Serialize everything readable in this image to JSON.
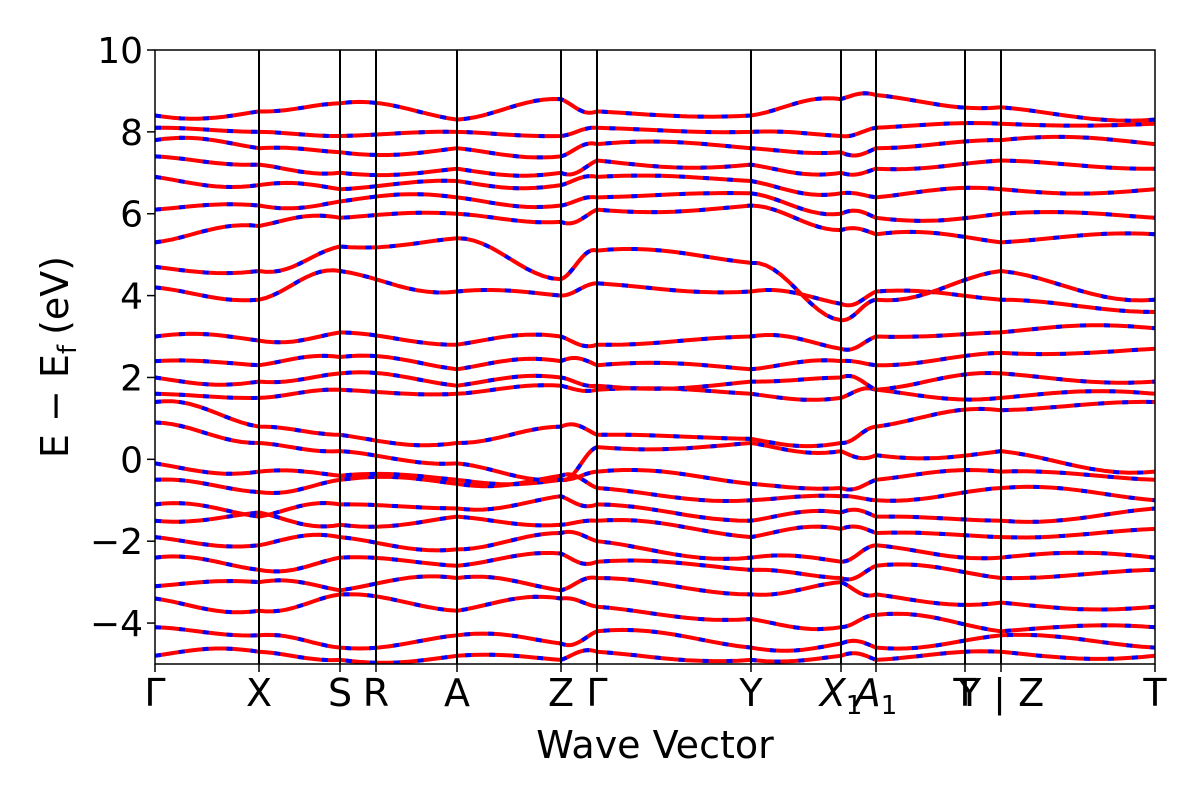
{
  "chart_data": {
    "type": "line",
    "xlabel": "Wave Vector",
    "ylabel_main": "E − E",
    "ylabel_sub": "f",
    "ylabel_unit": "(eV)",
    "ylim": [
      -5,
      10
    ],
    "yticks": [
      {
        "value": -4,
        "label": "−4"
      },
      {
        "value": -2,
        "label": "−2"
      },
      {
        "value": 0,
        "label": "0"
      },
      {
        "value": 2,
        "label": "2"
      },
      {
        "value": 4,
        "label": "4"
      },
      {
        "value": 6,
        "label": "6"
      },
      {
        "value": 8,
        "label": "8"
      },
      {
        "value": 10,
        "label": "10"
      }
    ],
    "xlim": [
      0,
      10
    ],
    "grid": false,
    "high_symmetry_points": [
      {
        "label": "Γ",
        "sub": "",
        "x": 0.0
      },
      {
        "label": "X",
        "sub": "",
        "x": 1.04
      },
      {
        "label": "S",
        "sub": "",
        "x": 1.85
      },
      {
        "label": "R",
        "sub": "",
        "x": 2.21
      },
      {
        "label": "A",
        "sub": "",
        "x": 3.02
      },
      {
        "label": "Z",
        "sub": "",
        "x": 4.06
      },
      {
        "label": "Γ",
        "sub": "",
        "x": 4.42
      },
      {
        "label": "Y",
        "sub": "",
        "x": 5.96
      },
      {
        "label": "X",
        "sub": "1",
        "x": 6.86,
        "italic": true
      },
      {
        "label": "A",
        "sub": "1",
        "x": 7.21,
        "italic": true
      },
      {
        "label": "T",
        "sub": "",
        "x": 8.1
      },
      {
        "label": "Y | Z",
        "sub": "",
        "x": 8.46
      },
      {
        "label": "T",
        "sub": "",
        "x": 10.0
      }
    ],
    "series": [
      {
        "color": "#ff0000",
        "style": "solid",
        "bands": [
          [
            -4.8,
            -4.7,
            -4.9,
            -4.8,
            -4.9,
            -4.7,
            -4.9,
            -4.8,
            -4.9,
            -4.7,
            -4.8
          ],
          [
            -4.1,
            -4.3,
            -4.6,
            -4.3,
            -4.5,
            -4.2,
            -4.6,
            -4.5,
            -4.6,
            -4.3,
            -4.6
          ],
          [
            -3.4,
            -3.7,
            -3.3,
            -3.7,
            -3.4,
            -3.6,
            -3.9,
            -4.1,
            -3.8,
            -4.2,
            -4.1
          ],
          [
            -3.1,
            -3.0,
            -3.2,
            -2.9,
            -3.2,
            -2.9,
            -3.3,
            -3.0,
            -3.3,
            -3.5,
            -3.6
          ],
          [
            -2.4,
            -2.7,
            -2.4,
            -2.6,
            -2.3,
            -2.5,
            -2.7,
            -2.9,
            -2.6,
            -2.9,
            -2.7
          ],
          [
            -1.9,
            -2.1,
            -1.9,
            -2.2,
            -1.8,
            -2.0,
            -2.4,
            -2.5,
            -2.1,
            -2.4,
            -2.4
          ],
          [
            -1.5,
            -1.3,
            -1.6,
            -1.4,
            -1.6,
            -1.5,
            -1.9,
            -1.7,
            -1.8,
            -1.9,
            -1.7
          ],
          [
            -1.1,
            -1.4,
            -1.1,
            -1.2,
            -0.9,
            -1.1,
            -1.5,
            -1.3,
            -1.4,
            -1.5,
            -1.2
          ],
          [
            -0.5,
            -0.8,
            -0.5,
            -0.6,
            -0.4,
            -0.7,
            -1.0,
            -0.9,
            -1.0,
            -0.7,
            -1.0
          ],
          [
            -0.1,
            -0.3,
            -0.4,
            -0.5,
            -0.5,
            -0.3,
            -0.6,
            -0.7,
            -0.5,
            -0.3,
            -0.5
          ],
          [
            0.9,
            0.4,
            0.2,
            -0.1,
            -0.5,
            0.3,
            0.4,
            0.2,
            0.1,
            0.2,
            -0.3
          ],
          [
            1.4,
            0.8,
            0.6,
            0.4,
            0.8,
            0.6,
            0.5,
            0.4,
            0.8,
            1.2,
            1.4
          ],
          [
            1.6,
            1.5,
            1.7,
            1.6,
            1.8,
            1.7,
            1.6,
            1.5,
            1.7,
            1.5,
            1.6
          ],
          [
            2.0,
            1.9,
            2.1,
            1.8,
            2.0,
            1.8,
            1.9,
            2.0,
            1.7,
            2.1,
            1.9
          ],
          [
            2.4,
            2.3,
            2.5,
            2.2,
            2.4,
            2.3,
            2.2,
            2.4,
            2.3,
            2.6,
            2.7
          ],
          [
            3.0,
            2.9,
            3.1,
            2.8,
            3.0,
            2.8,
            3.0,
            2.7,
            3.0,
            3.1,
            3.2
          ],
          [
            4.2,
            3.9,
            4.6,
            4.1,
            4.0,
            4.3,
            4.1,
            3.8,
            4.1,
            3.9,
            3.6
          ],
          [
            4.7,
            4.6,
            5.2,
            5.4,
            4.4,
            5.1,
            4.8,
            3.4,
            3.9,
            4.6,
            3.9
          ],
          [
            5.3,
            5.7,
            5.9,
            6.0,
            5.8,
            6.1,
            6.2,
            5.6,
            5.5,
            5.3,
            5.5
          ],
          [
            6.1,
            6.2,
            6.3,
            6.4,
            6.2,
            6.4,
            6.5,
            6.0,
            5.9,
            6.0,
            5.9
          ],
          [
            6.9,
            6.7,
            6.6,
            6.8,
            6.7,
            6.9,
            6.8,
            6.5,
            6.4,
            6.6,
            6.6
          ],
          [
            7.4,
            7.2,
            7.0,
            7.1,
            7.0,
            7.3,
            7.2,
            7.0,
            7.1,
            7.3,
            7.1
          ],
          [
            7.8,
            7.6,
            7.5,
            7.6,
            7.4,
            7.7,
            7.6,
            7.5,
            7.6,
            7.8,
            7.7
          ],
          [
            8.1,
            8.0,
            7.9,
            8.0,
            7.9,
            8.1,
            8.0,
            7.9,
            8.1,
            8.2,
            8.2
          ],
          [
            8.4,
            8.5,
            8.7,
            8.3,
            8.8,
            8.5,
            8.4,
            8.8,
            8.9,
            8.6,
            8.3
          ]
        ]
      },
      {
        "color": "#0000ff",
        "style": "dashed",
        "bands": "same"
      }
    ]
  }
}
